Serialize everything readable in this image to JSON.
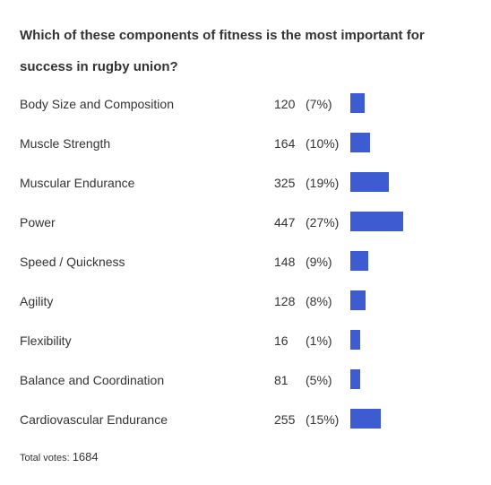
{
  "poll": {
    "question": "Which of these components of fitness is the most important for success in rugby union?",
    "total_label": "Total votes:",
    "total_value": "1684",
    "bar_color": "#3d5cd1"
  },
  "chart_data": {
    "type": "bar",
    "orientation": "horizontal",
    "title": "Which of these components of fitness is the most important for success in rugby union?",
    "categories": [
      "Body Size and Composition",
      "Muscle Strength",
      "Muscular Endurance",
      "Power",
      "Speed / Quickness",
      "Agility",
      "Flexibility",
      "Balance and Coordination",
      "Cardiovascular Endurance"
    ],
    "values": [
      120,
      164,
      325,
      447,
      148,
      128,
      16,
      81,
      255
    ],
    "percent_labels": [
      "(7%)",
      "(10%)",
      "(19%)",
      "(27%)",
      "(9%)",
      "(8%)",
      "(1%)",
      "(5%)",
      "(15%)"
    ],
    "total": 1684
  }
}
